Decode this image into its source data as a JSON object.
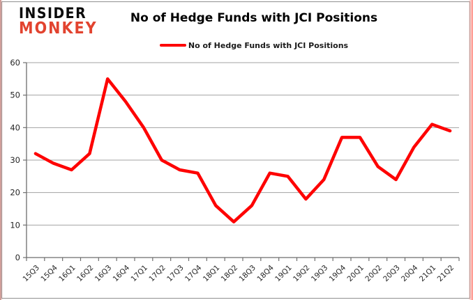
{
  "logo": {
    "line1": "INSIDER",
    "line2": "MONKEY"
  },
  "title": "No of Hedge Funds with JCI Positions",
  "legend": {
    "label": "No of Hedge Funds with JCI Positions"
  },
  "colors": {
    "series_line": "#fe0000",
    "logo_red": "#e2432f",
    "grid": "#a3a3a3",
    "axis": "#6e6e6e",
    "tick_text": "#262626",
    "border": "#8f8f8f"
  },
  "chart_data": {
    "type": "line",
    "title": "No of Hedge Funds with JCI Positions",
    "xlabel": "",
    "ylabel": "",
    "categories": [
      "15Q3",
      "15Q4",
      "16Q1",
      "16Q2",
      "16Q3",
      "16Q4",
      "17Q1",
      "17Q2",
      "17Q3",
      "17Q4",
      "18Q1",
      "18Q2",
      "18Q3",
      "18Q4",
      "19Q1",
      "19Q2",
      "19Q3",
      "19Q4",
      "20Q1",
      "20Q2",
      "20Q3",
      "20Q4",
      "21Q1",
      "21Q2"
    ],
    "values": [
      32,
      29,
      27,
      32,
      55,
      48,
      40,
      30,
      27,
      26,
      16,
      11,
      16,
      26,
      25,
      18,
      24,
      37,
      37,
      28,
      24,
      34,
      41,
      39
    ],
    "series": [
      {
        "name": "No of Hedge Funds with JCI Positions",
        "values": [
          32,
          29,
          27,
          32,
          55,
          48,
          40,
          30,
          27,
          26,
          16,
          11,
          16,
          26,
          25,
          18,
          24,
          37,
          37,
          28,
          24,
          34,
          41,
          39
        ]
      }
    ],
    "ylim": [
      0,
      60
    ],
    "yticks": [
      0,
      10,
      20,
      30,
      40,
      50,
      60
    ],
    "grid": true,
    "legend_position": "top"
  }
}
